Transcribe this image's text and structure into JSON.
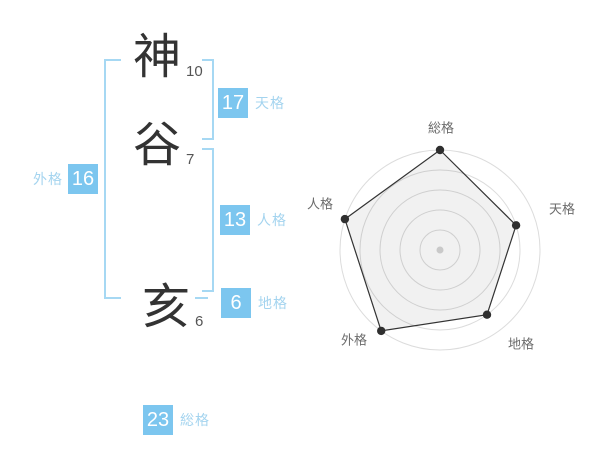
{
  "name": {
    "characters": [
      {
        "char": "神",
        "strokes": "10"
      },
      {
        "char": "谷",
        "strokes": "7"
      },
      {
        "char": "亥",
        "strokes": "6"
      }
    ]
  },
  "kaku": [
    {
      "id": "tenkaku",
      "label": "天格",
      "value": "17"
    },
    {
      "id": "jinkaku",
      "label": "人格",
      "value": "13"
    },
    {
      "id": "chikaku",
      "label": "地格",
      "value": "6"
    },
    {
      "id": "gaikaku",
      "label": "外格",
      "value": "16"
    },
    {
      "id": "soukaku",
      "label": "総格",
      "value": "23"
    }
  ],
  "colors": {
    "badge_blue": "#7cc6ef",
    "bracket_blue": "#a6d8f3",
    "label_blue": "#a4d4ef",
    "kanji_dark": "#333333",
    "ring_gray": "#dcdcdc"
  },
  "chart_data": {
    "type": "radar",
    "categories": [
      "総格",
      "天格",
      "地格",
      "外格",
      "人格"
    ],
    "values": [
      5,
      4,
      4,
      5,
      5
    ],
    "max": 5,
    "rings": 5,
    "grid": true,
    "legend": false,
    "title": "",
    "axis_lines": false
  }
}
